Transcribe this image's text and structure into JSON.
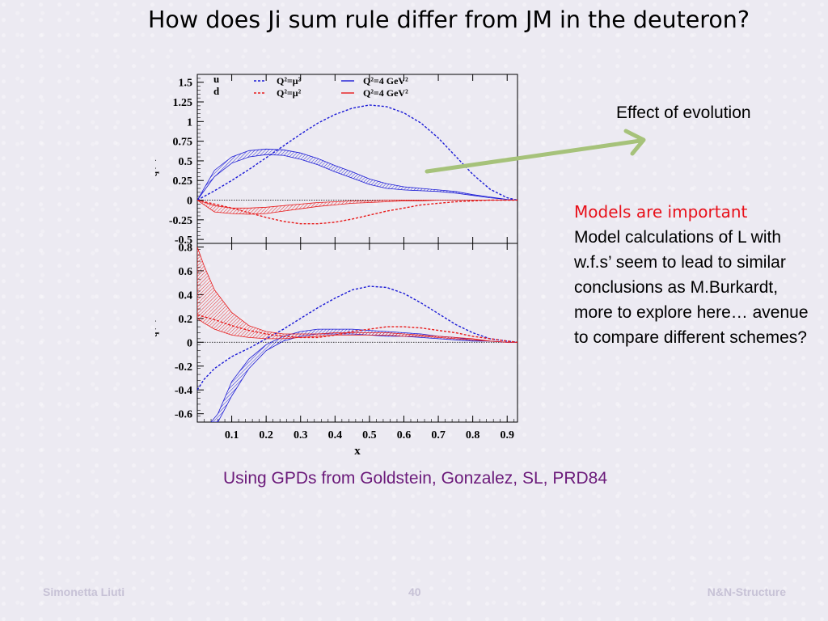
{
  "slide": {
    "title": "How does Ji sum rule differ from JM in the deuteron?",
    "effect_label": "Effect of evolution",
    "models_heading": "Models are important",
    "models_body": "Model calculations of L with w.f.s’ seem to lead to similar conclusions as M.Burkardt, more to explore here… avenue to compare different schemes?",
    "citation": "Using GPDs from Goldstein, Gonzalez, SL, PRD84",
    "footer_left": "Simonetta Liuti",
    "footer_center": "40",
    "footer_right": "N&N-Structure"
  },
  "colors": {
    "blue": "#1a1ad6",
    "red": "#e81a1a",
    "citation": "#6b1a7a",
    "arrow": "#a6c27a"
  },
  "chart_data": [
    {
      "type": "line",
      "panel": "top",
      "ylabel": "J_q(x)",
      "xlabel": "",
      "xlim": [
        0,
        0.93
      ],
      "ylim": [
        -0.55,
        1.6
      ],
      "yticks": [
        "1.5",
        "1.25",
        "1",
        "0.75",
        "0.5",
        "0.25",
        "0",
        "-0.25",
        "-0.5"
      ],
      "ytick_values": [
        1.5,
        1.25,
        1,
        0.75,
        0.5,
        0.25,
        0,
        -0.25,
        -0.5
      ],
      "legend": {
        "row_labels": [
          "u",
          "d"
        ],
        "entries": [
          "Q²=μ²",
          "Q²=4 GeV²",
          "Q²=μ²",
          "Q²=4 GeV²"
        ]
      },
      "series": [
        {
          "name": "u Q²=μ²",
          "color": "blue",
          "style": "dashed",
          "band": false,
          "x": [
            0,
            0.05,
            0.1,
            0.15,
            0.2,
            0.25,
            0.3,
            0.35,
            0.4,
            0.45,
            0.5,
            0.55,
            0.6,
            0.65,
            0.7,
            0.75,
            0.8,
            0.85,
            0.9,
            0.93
          ],
          "y": [
            0,
            0.12,
            0.25,
            0.39,
            0.54,
            0.69,
            0.84,
            0.98,
            1.09,
            1.17,
            1.21,
            1.19,
            1.11,
            0.98,
            0.79,
            0.56,
            0.33,
            0.14,
            0.03,
            0.0
          ]
        },
        {
          "name": "u Q²=4 GeV²",
          "color": "blue",
          "style": "band",
          "band": true,
          "x": [
            0,
            0.05,
            0.1,
            0.15,
            0.2,
            0.25,
            0.3,
            0.35,
            0.4,
            0.45,
            0.5,
            0.55,
            0.6,
            0.65,
            0.7,
            0.75,
            0.8,
            0.85,
            0.9,
            0.93
          ],
          "y_low": [
            0,
            0.3,
            0.47,
            0.55,
            0.58,
            0.57,
            0.52,
            0.45,
            0.36,
            0.28,
            0.2,
            0.15,
            0.13,
            0.12,
            0.11,
            0.09,
            0.06,
            0.03,
            0.01,
            0.0
          ],
          "y_high": [
            0,
            0.38,
            0.55,
            0.63,
            0.65,
            0.64,
            0.6,
            0.53,
            0.44,
            0.36,
            0.27,
            0.21,
            0.17,
            0.15,
            0.13,
            0.11,
            0.07,
            0.04,
            0.01,
            0.0
          ]
        },
        {
          "name": "d Q²=μ²",
          "color": "red",
          "style": "dashed",
          "band": false,
          "x": [
            0,
            0.05,
            0.1,
            0.15,
            0.2,
            0.25,
            0.3,
            0.35,
            0.4,
            0.45,
            0.5,
            0.55,
            0.6,
            0.65,
            0.7,
            0.75,
            0.8,
            0.85,
            0.9,
            0.93
          ],
          "y": [
            0,
            -0.05,
            -0.1,
            -0.16,
            -0.22,
            -0.27,
            -0.3,
            -0.3,
            -0.28,
            -0.24,
            -0.19,
            -0.14,
            -0.1,
            -0.06,
            -0.04,
            -0.02,
            -0.01,
            0,
            0,
            0
          ]
        },
        {
          "name": "d Q²=4 GeV²",
          "color": "red",
          "style": "band",
          "band": true,
          "x": [
            0,
            0.05,
            0.1,
            0.15,
            0.2,
            0.25,
            0.3,
            0.35,
            0.4,
            0.45,
            0.5,
            0.55,
            0.6,
            0.65,
            0.7,
            0.75,
            0.8,
            0.85,
            0.9,
            0.93
          ],
          "y_low": [
            0,
            -0.15,
            -0.17,
            -0.18,
            -0.17,
            -0.14,
            -0.11,
            -0.08,
            -0.06,
            -0.04,
            -0.03,
            -0.02,
            -0.01,
            -0.01,
            0,
            0,
            0,
            0,
            0,
            0
          ],
          "y_high": [
            0,
            -0.07,
            -0.1,
            -0.1,
            -0.09,
            -0.07,
            -0.05,
            -0.03,
            -0.02,
            -0.01,
            -0.01,
            0,
            0,
            0,
            0,
            0,
            0,
            0,
            0,
            0
          ]
        }
      ]
    },
    {
      "type": "line",
      "panel": "bottom",
      "ylabel": "L_q(x)",
      "xlabel": "x",
      "xlim": [
        0,
        0.93
      ],
      "ylim": [
        -0.67,
        0.83
      ],
      "yticks": [
        "0.8",
        "0.6",
        "0.4",
        "0.2",
        "0",
        "-0.2",
        "-0.4",
        "-0.6"
      ],
      "ytick_values": [
        0.8,
        0.6,
        0.4,
        0.2,
        0,
        -0.2,
        -0.4,
        -0.6
      ],
      "xticks": [
        "0.1",
        "0.2",
        "0.3",
        "0.4",
        "0.5",
        "0.6",
        "0.7",
        "0.8",
        "0.9"
      ],
      "xtick_values": [
        0.1,
        0.2,
        0.3,
        0.4,
        0.5,
        0.6,
        0.7,
        0.8,
        0.9
      ],
      "series": [
        {
          "name": "u Q²=μ²",
          "color": "blue",
          "style": "dashed",
          "band": false,
          "x": [
            0,
            0.02,
            0.05,
            0.1,
            0.15,
            0.2,
            0.25,
            0.3,
            0.35,
            0.4,
            0.45,
            0.5,
            0.55,
            0.6,
            0.65,
            0.7,
            0.75,
            0.8,
            0.85,
            0.9,
            0.93
          ],
          "y": [
            -0.4,
            -0.31,
            -0.22,
            -0.12,
            -0.05,
            0.03,
            0.11,
            0.2,
            0.29,
            0.37,
            0.44,
            0.47,
            0.46,
            0.41,
            0.33,
            0.24,
            0.15,
            0.08,
            0.03,
            0.01,
            0.0
          ]
        },
        {
          "name": "u Q²=4 GeV²",
          "color": "blue",
          "style": "band",
          "band": true,
          "x": [
            0.04,
            0.06,
            0.1,
            0.15,
            0.2,
            0.25,
            0.3,
            0.35,
            0.4,
            0.45,
            0.5,
            0.55,
            0.6,
            0.65,
            0.7,
            0.75,
            0.8,
            0.85,
            0.9,
            0.93
          ],
          "y_low": [
            -0.67,
            -0.67,
            -0.45,
            -0.22,
            -0.07,
            0.01,
            0.05,
            0.07,
            0.07,
            0.07,
            0.06,
            0.05,
            0.05,
            0.04,
            0.03,
            0.02,
            0.01,
            0.01,
            0.0,
            0.0
          ],
          "y_high": [
            -0.67,
            -0.6,
            -0.33,
            -0.14,
            -0.02,
            0.05,
            0.09,
            0.11,
            0.11,
            0.11,
            0.1,
            0.09,
            0.08,
            0.07,
            0.05,
            0.04,
            0.02,
            0.01,
            0.0,
            0.0
          ]
        },
        {
          "name": "d Q²=μ²",
          "color": "red",
          "style": "dashed",
          "band": false,
          "x": [
            0,
            0.05,
            0.1,
            0.15,
            0.2,
            0.25,
            0.3,
            0.35,
            0.4,
            0.45,
            0.5,
            0.55,
            0.6,
            0.65,
            0.7,
            0.75,
            0.8,
            0.85,
            0.9,
            0.93
          ],
          "y": [
            0.23,
            0.19,
            0.14,
            0.1,
            0.07,
            0.05,
            0.04,
            0.04,
            0.06,
            0.09,
            0.11,
            0.13,
            0.13,
            0.12,
            0.1,
            0.08,
            0.05,
            0.03,
            0.01,
            0.0
          ]
        },
        {
          "name": "d Q²=4 GeV²",
          "color": "red",
          "style": "band",
          "band": true,
          "x": [
            0,
            0.02,
            0.05,
            0.1,
            0.15,
            0.2,
            0.25,
            0.3,
            0.35,
            0.4,
            0.45,
            0.5,
            0.55,
            0.6,
            0.65,
            0.7,
            0.75,
            0.8,
            0.85,
            0.9,
            0.93
          ],
          "y_low": [
            0.2,
            0.16,
            0.11,
            0.06,
            0.04,
            0.03,
            0.03,
            0.04,
            0.05,
            0.06,
            0.06,
            0.06,
            0.06,
            0.05,
            0.05,
            0.04,
            0.03,
            0.02,
            0.01,
            0.0,
            0.0
          ],
          "y_high": [
            0.8,
            0.64,
            0.44,
            0.25,
            0.14,
            0.09,
            0.07,
            0.07,
            0.07,
            0.08,
            0.08,
            0.08,
            0.08,
            0.07,
            0.06,
            0.05,
            0.04,
            0.03,
            0.01,
            0.0,
            0.0
          ]
        }
      ]
    }
  ]
}
